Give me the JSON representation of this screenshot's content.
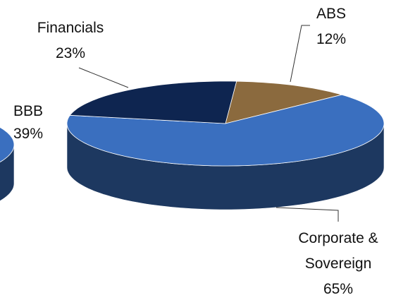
{
  "chart_data": [
    {
      "type": "pie",
      "categories": [
        "BBB"
      ],
      "values": [
        39
      ],
      "value_labels": [
        "39%"
      ],
      "colors": [
        "#3a6fbf"
      ]
    },
    {
      "type": "pie",
      "categories": [
        "ABS",
        "Corporate & Sovereign",
        "Financials"
      ],
      "values": [
        12,
        65,
        23
      ],
      "value_labels": [
        "12%",
        "65%",
        "23%"
      ],
      "colors": [
        "#8b6a3e",
        "#3a6fbf",
        "#0e2550"
      ]
    }
  ]
}
